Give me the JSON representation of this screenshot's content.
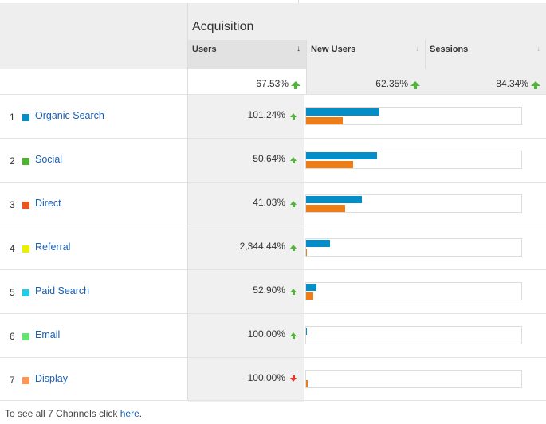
{
  "header": {
    "group_title": "Acquisition",
    "columns": [
      {
        "label": "Users",
        "sort_active": true
      },
      {
        "label": "New Users",
        "sort_active": false
      },
      {
        "label": "Sessions",
        "sort_active": false
      }
    ],
    "sort_icon": "arrow-down-icon"
  },
  "totals": {
    "users": "67.53%",
    "new_users": "62.35%",
    "sessions": "84.34%",
    "trend_icon": "up-arrow-icon"
  },
  "rows": [
    {
      "num": "1",
      "name": "Organic Search",
      "color": "#058dc7",
      "users_pct": "101.24%",
      "trend": "up",
      "bar_blue": 0.34,
      "bar_orange": 0.17
    },
    {
      "num": "2",
      "name": "Social",
      "color": "#50b432",
      "users_pct": "50.64%",
      "trend": "up",
      "bar_blue": 0.33,
      "bar_orange": 0.22
    },
    {
      "num": "3",
      "name": "Direct",
      "color": "#ed561b",
      "users_pct": "41.03%",
      "trend": "up",
      "bar_blue": 0.26,
      "bar_orange": 0.18
    },
    {
      "num": "4",
      "name": "Referral",
      "color": "#edef00",
      "users_pct": "2,344.44%",
      "trend": "up",
      "bar_blue": 0.11,
      "bar_orange": 0.005
    },
    {
      "num": "5",
      "name": "Paid Search",
      "color": "#24cbe5",
      "users_pct": "52.90%",
      "trend": "up",
      "bar_blue": 0.048,
      "bar_orange": 0.033
    },
    {
      "num": "6",
      "name": "Email",
      "color": "#64e572",
      "users_pct": "100.00%",
      "trend": "up",
      "bar_blue": 0.004,
      "bar_orange": 0.0
    },
    {
      "num": "7",
      "name": "Display",
      "color": "#ff9655",
      "users_pct": "100.00%",
      "trend": "down",
      "bar_blue": 0.0,
      "bar_orange": 0.007
    }
  ],
  "footer": {
    "text": "To see all 7 Channels click ",
    "link": "here",
    "end": "."
  }
}
